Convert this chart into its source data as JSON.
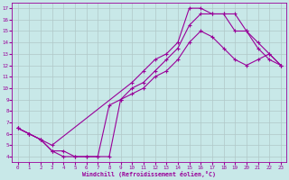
{
  "xlabel": "Windchill (Refroidissement éolien,°C)",
  "bg_color": "#c8e8e8",
  "line_color": "#990099",
  "xlim": [
    -0.5,
    23.5
  ],
  "ylim": [
    3.5,
    17.5
  ],
  "xticks": [
    0,
    1,
    2,
    3,
    4,
    5,
    6,
    7,
    8,
    9,
    10,
    11,
    12,
    13,
    14,
    15,
    16,
    17,
    18,
    19,
    20,
    21,
    22,
    23
  ],
  "yticks": [
    4,
    5,
    6,
    7,
    8,
    9,
    10,
    11,
    12,
    13,
    14,
    15,
    16,
    17
  ],
  "grid_color": "#b0c8c8",
  "curve_upper_x": [
    0,
    1,
    2,
    3,
    10,
    11,
    12,
    13,
    14,
    15,
    16,
    17,
    18,
    19,
    20,
    21,
    22,
    23
  ],
  "curve_upper_y": [
    6.5,
    6.0,
    5.5,
    5.0,
    10.5,
    11.5,
    12.5,
    13.0,
    14.0,
    17.0,
    17.0,
    16.5,
    16.5,
    15.0,
    15.0,
    14.0,
    13.0,
    12.0
  ],
  "curve_mid_x": [
    0,
    1,
    2,
    3,
    4,
    5,
    6,
    7,
    8,
    9,
    10,
    11,
    12,
    13,
    14,
    15,
    16,
    17,
    18,
    19,
    20,
    21,
    22,
    23
  ],
  "curve_mid_y": [
    6.5,
    6.0,
    5.5,
    4.5,
    4.5,
    4.0,
    4.0,
    4.0,
    8.5,
    9.0,
    10.0,
    10.5,
    11.5,
    12.5,
    13.5,
    15.5,
    16.5,
    16.5,
    16.5,
    16.5,
    15.0,
    13.5,
    12.5,
    12.0
  ],
  "curve_low_x": [
    0,
    1,
    2,
    3,
    4,
    5,
    6,
    7,
    8,
    9,
    10,
    11,
    12,
    13,
    14,
    15,
    16,
    17,
    18,
    19,
    20,
    21,
    22,
    23
  ],
  "curve_low_y": [
    6.5,
    6.0,
    5.5,
    4.5,
    4.0,
    4.0,
    4.0,
    4.0,
    4.0,
    9.0,
    9.5,
    10.0,
    11.0,
    11.5,
    12.5,
    14.0,
    15.0,
    14.5,
    13.5,
    12.5,
    12.0,
    12.5,
    13.0,
    12.0
  ]
}
